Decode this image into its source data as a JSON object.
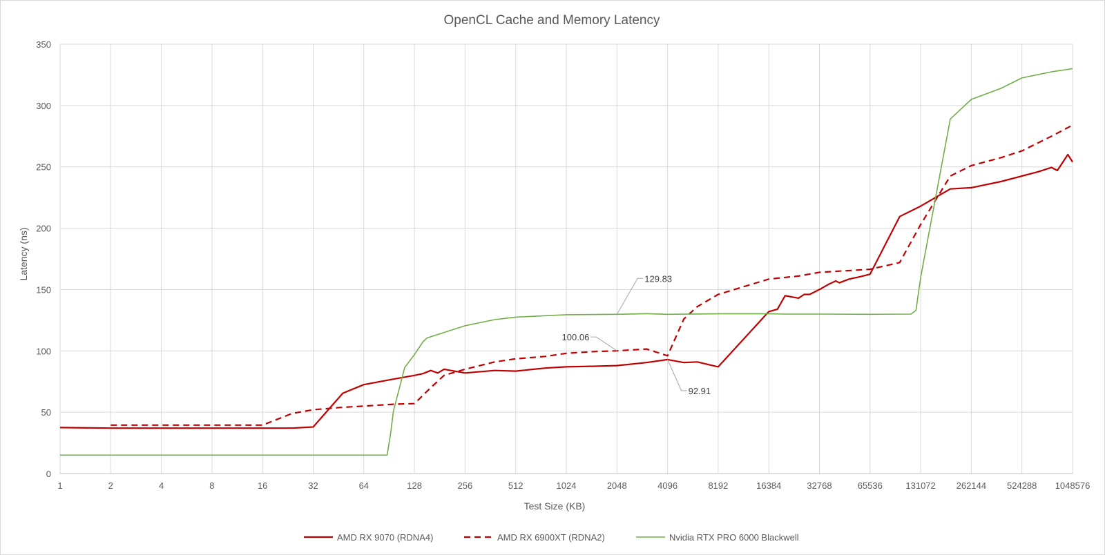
{
  "chart_data": {
    "type": "line",
    "title": "OpenCL Cache and Memory Latency",
    "xlabel": "Test Size (KB)",
    "ylabel": "Latency (ns)",
    "x_scale": "log2",
    "xlim": [
      1,
      1048576
    ],
    "ylim": [
      0,
      350
    ],
    "yticks": [
      0,
      50,
      100,
      150,
      200,
      250,
      300,
      350
    ],
    "xticks": [
      "1",
      "2",
      "4",
      "8",
      "16",
      "32",
      "64",
      "128",
      "256",
      "512",
      "1024",
      "2048",
      "4096",
      "8192",
      "16384",
      "32768",
      "65536",
      "131072",
      "262144",
      "524288",
      "1048576"
    ],
    "grid": true,
    "legend_position": "bottom",
    "series": [
      {
        "name": "AMD RX 9070 (RDNA4)",
        "color": "#c00000",
        "style": "solid",
        "points": [
          [
            1,
            37.5
          ],
          [
            2,
            37
          ],
          [
            4,
            37
          ],
          [
            8,
            37
          ],
          [
            16,
            37
          ],
          [
            24,
            37
          ],
          [
            32,
            38
          ],
          [
            48,
            65.5
          ],
          [
            64,
            72.5
          ],
          [
            96,
            77
          ],
          [
            128,
            80
          ],
          [
            144,
            81.5
          ],
          [
            160,
            84
          ],
          [
            176,
            82
          ],
          [
            192,
            85
          ],
          [
            256,
            82
          ],
          [
            384,
            84
          ],
          [
            512,
            83.5
          ],
          [
            768,
            86
          ],
          [
            1024,
            87
          ],
          [
            1536,
            87.5
          ],
          [
            2048,
            88
          ],
          [
            3072,
            90.5
          ],
          [
            4096,
            92.91
          ],
          [
            5120,
            90.5
          ],
          [
            6144,
            91
          ],
          [
            8192,
            87
          ],
          [
            16384,
            132
          ],
          [
            18432,
            134
          ],
          [
            20480,
            145
          ],
          [
            24576,
            143
          ],
          [
            26624,
            146
          ],
          [
            28672,
            146
          ],
          [
            32768,
            150
          ],
          [
            36864,
            154
          ],
          [
            40960,
            157
          ],
          [
            43008,
            155.5
          ],
          [
            49152,
            158.5
          ],
          [
            57344,
            160.5
          ],
          [
            65536,
            162.5
          ],
          [
            98304,
            209.5
          ],
          [
            131072,
            218
          ],
          [
            196608,
            232
          ],
          [
            262144,
            233
          ],
          [
            393216,
            238
          ],
          [
            524288,
            242.5
          ],
          [
            655360,
            246
          ],
          [
            786432,
            249.5
          ],
          [
            851968,
            247
          ],
          [
            983040,
            260
          ],
          [
            1048576,
            254
          ]
        ]
      },
      {
        "name": "AMD RX 6900XT (RDNA2)",
        "color": "#c00000",
        "style": "dashed",
        "points": [
          [
            2,
            39.5
          ],
          [
            4,
            39.5
          ],
          [
            8,
            39.5
          ],
          [
            16,
            39.5
          ],
          [
            24,
            49
          ],
          [
            32,
            52
          ],
          [
            48,
            54
          ],
          [
            64,
            55
          ],
          [
            96,
            56.5
          ],
          [
            128,
            57
          ],
          [
            160,
            70
          ],
          [
            192,
            80
          ],
          [
            256,
            85
          ],
          [
            384,
            91
          ],
          [
            512,
            93.5
          ],
          [
            768,
            95.5
          ],
          [
            1024,
            98
          ],
          [
            1536,
            99.5
          ],
          [
            2048,
            100.06
          ],
          [
            3072,
            101.5
          ],
          [
            4096,
            96
          ],
          [
            5120,
            126
          ],
          [
            6144,
            136
          ],
          [
            8192,
            146
          ],
          [
            16384,
            158.5
          ],
          [
            24576,
            161
          ],
          [
            32768,
            164
          ],
          [
            65536,
            166.5
          ],
          [
            98304,
            172
          ],
          [
            131072,
            203
          ],
          [
            196608,
            242.5
          ],
          [
            262144,
            251
          ],
          [
            393216,
            257.5
          ],
          [
            524288,
            263
          ],
          [
            786432,
            275
          ],
          [
            1048576,
            284
          ]
        ]
      },
      {
        "name": "Nvidia RTX PRO 6000 Blackwell",
        "color": "#70ad47",
        "style": "solid",
        "points": [
          [
            1,
            15
          ],
          [
            2,
            15
          ],
          [
            4,
            15
          ],
          [
            8,
            15
          ],
          [
            16,
            15
          ],
          [
            32,
            15
          ],
          [
            64,
            15
          ],
          [
            88,
            15
          ],
          [
            92,
            31
          ],
          [
            96,
            51
          ],
          [
            112,
            86.5
          ],
          [
            128,
            97
          ],
          [
            144,
            107.5
          ],
          [
            152,
            110.5
          ],
          [
            168,
            112.5
          ],
          [
            256,
            120.5
          ],
          [
            384,
            125.5
          ],
          [
            512,
            127.5
          ],
          [
            1024,
            129.5
          ],
          [
            2048,
            129.83
          ],
          [
            3072,
            130.3
          ],
          [
            4096,
            129.8
          ],
          [
            8192,
            130.2
          ],
          [
            16384,
            130.2
          ],
          [
            20480,
            130
          ],
          [
            32768,
            130
          ],
          [
            65536,
            129.8
          ],
          [
            114688,
            130
          ],
          [
            122880,
            133
          ],
          [
            131072,
            160
          ],
          [
            196608,
            289
          ],
          [
            262144,
            305
          ],
          [
            393216,
            314
          ],
          [
            524288,
            322.5
          ],
          [
            786432,
            327.5
          ],
          [
            1048576,
            330
          ]
        ]
      }
    ],
    "annotations": [
      {
        "text": "129.83",
        "series": "Nvidia RTX PRO 6000 Blackwell",
        "x": 2048,
        "y": 129.83
      },
      {
        "text": "100.06",
        "series": "AMD RX 6900XT (RDNA2)",
        "x": 2048,
        "y": 100.06
      },
      {
        "text": "92.91",
        "series": "AMD RX 9070 (RDNA4)",
        "x": 4096,
        "y": 92.91
      }
    ]
  }
}
